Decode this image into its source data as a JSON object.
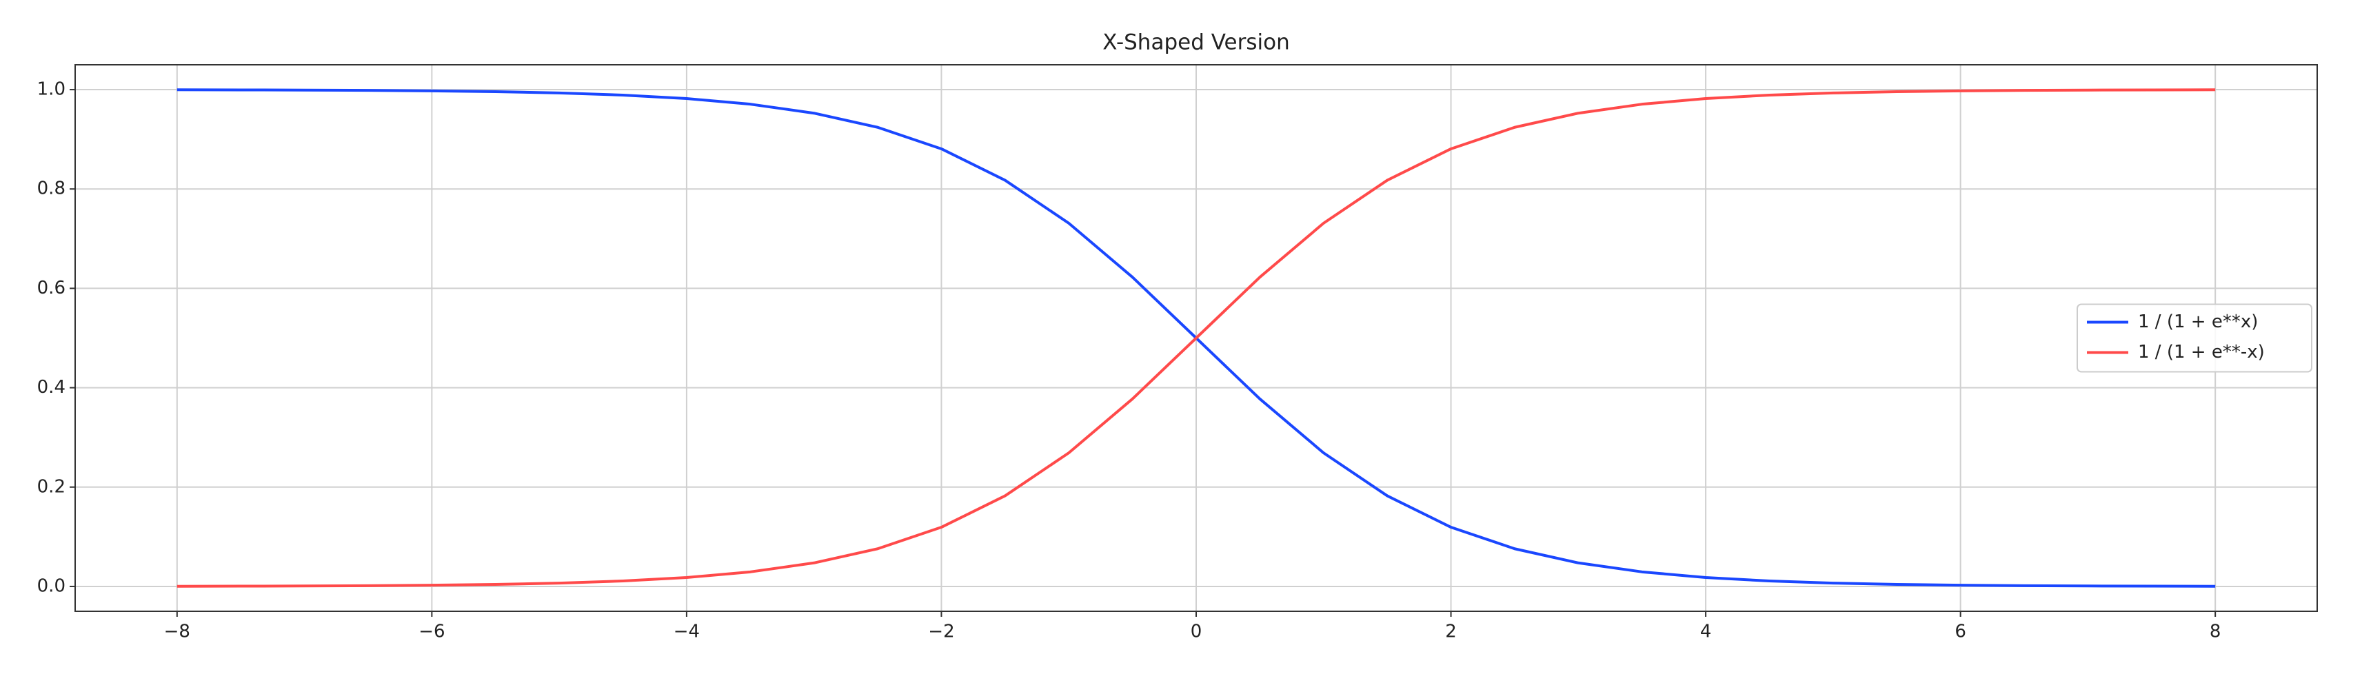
{
  "chart_data": {
    "type": "line",
    "title": "X-Shaped Version",
    "x": [
      -8,
      -7.5,
      -7,
      -6.5,
      -6,
      -5.5,
      -5,
      -4.5,
      -4,
      -3.5,
      -3,
      -2.5,
      -2,
      -1.5,
      -1,
      -0.5,
      0,
      0.5,
      1,
      1.5,
      2,
      2.5,
      3,
      3.5,
      4,
      4.5,
      5,
      5.5,
      6,
      6.5,
      7,
      7.5,
      8
    ],
    "series": [
      {
        "name": "1 / (1 + e**x)",
        "color": "#1a47ff",
        "values": [
          0.9997,
          0.9994,
          0.9991,
          0.9985,
          0.9975,
          0.9959,
          0.9933,
          0.989,
          0.982,
          0.9707,
          0.9526,
          0.9241,
          0.8808,
          0.8176,
          0.7311,
          0.6225,
          0.5,
          0.3775,
          0.2689,
          0.1824,
          0.1192,
          0.0759,
          0.0474,
          0.0293,
          0.018,
          0.011,
          0.0067,
          0.0041,
          0.0025,
          0.0015,
          0.0009,
          0.0006,
          0.0003
        ]
      },
      {
        "name": "1 / (1 + e**-x)",
        "color": "#ff4a4a",
        "values": [
          0.0003,
          0.0006,
          0.0009,
          0.0015,
          0.0025,
          0.0041,
          0.0067,
          0.011,
          0.018,
          0.0293,
          0.0474,
          0.0759,
          0.1192,
          0.1824,
          0.2689,
          0.3775,
          0.5,
          0.6225,
          0.7311,
          0.8176,
          0.8808,
          0.9241,
          0.9526,
          0.9707,
          0.982,
          0.989,
          0.9933,
          0.9959,
          0.9975,
          0.9985,
          0.9991,
          0.9994,
          0.9997
        ]
      }
    ],
    "xlim": [
      -8.8,
      8.8
    ],
    "xticks": [
      {
        "value": -8,
        "label": "−8"
      },
      {
        "value": -6,
        "label": "−6"
      },
      {
        "value": -4,
        "label": "−4"
      },
      {
        "value": -2,
        "label": "−2"
      },
      0,
      2,
      4,
      6,
      8
    ],
    "ylim": [
      -0.05,
      1.05
    ],
    "yticks": [
      {
        "value": 0,
        "label": "0.0"
      },
      0.2,
      0.4,
      0.6,
      0.8,
      {
        "value": 1,
        "label": "1.0"
      }
    ],
    "grid": true,
    "legend": "center right"
  }
}
